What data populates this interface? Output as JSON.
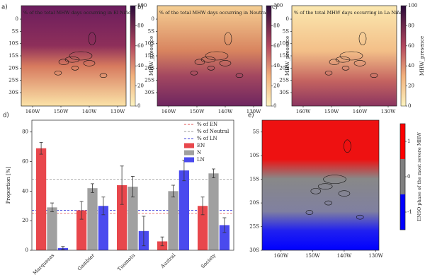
{
  "maps": [
    {
      "panel": "a)",
      "title": "% of the total MHW days occurring in El Niño"
    },
    {
      "panel": "b)",
      "title": "% of the total MHW days occurring in Neutral"
    },
    {
      "panel": "c)",
      "title": "% of the total MHW days occurring in La Niña"
    }
  ],
  "map_axes": {
    "xlim": [
      -164,
      -127
    ],
    "ylim": [
      -35.5,
      5.5
    ],
    "xticks": [
      {
        "value": -160,
        "label": "160W"
      },
      {
        "value": -150,
        "label": "150W"
      },
      {
        "value": -140,
        "label": "140W"
      },
      {
        "value": -130,
        "label": "130W"
      }
    ],
    "yticks": [
      {
        "value": 0,
        "label": "0"
      },
      {
        "value": -5,
        "label": "5S"
      },
      {
        "value": -10,
        "label": "10S"
      },
      {
        "value": -15,
        "label": "15S"
      },
      {
        "value": -20,
        "label": "20S"
      },
      {
        "value": -25,
        "label": "25S"
      },
      {
        "value": -30,
        "label": "30S"
      }
    ]
  },
  "map_colorbar": {
    "label": "MHW_presence",
    "lim": [
      0,
      100
    ],
    "ticks": [
      0,
      20,
      40,
      60,
      80,
      100
    ]
  },
  "map_e": {
    "panel": "e)",
    "xlim": [
      -166,
      -129
    ],
    "ylim": [
      -30,
      -2.5
    ],
    "xticks": [
      {
        "value": -160,
        "label": "160W"
      },
      {
        "value": -150,
        "label": "150W"
      },
      {
        "value": -140,
        "label": "140W"
      },
      {
        "value": -130,
        "label": "130W"
      }
    ],
    "yticks": [
      {
        "value": -5,
        "label": "5S"
      },
      {
        "value": -10,
        "label": "10S"
      },
      {
        "value": -15,
        "label": "15S"
      },
      {
        "value": -20,
        "label": "20S"
      },
      {
        "value": -25,
        "label": "25S"
      },
      {
        "value": -30,
        "label": "30S"
      }
    ],
    "colorbar": {
      "label": "ENSO phase of the most severe MHW",
      "lim": [
        -1.5,
        1.5
      ],
      "ticks": [
        -1,
        0,
        1
      ],
      "colors": [
        "#0000ff",
        "#808080",
        "#ff0000"
      ]
    }
  },
  "chart_data": {
    "type": "bar",
    "panel": "d)",
    "ylabel": "Proportion [%]",
    "categories": [
      "Marquesas",
      "Gambier",
      "Tuamotu",
      "Austral",
      "Society"
    ],
    "series": [
      {
        "name": "EN",
        "color": "#e8474c",
        "values": [
          69,
          27,
          44,
          6,
          30
        ],
        "errors": [
          4,
          6,
          13,
          3,
          6
        ]
      },
      {
        "name": "N",
        "color": "#a0a0a0",
        "values": [
          29,
          42,
          43,
          40,
          52
        ],
        "errors": [
          3,
          3,
          7,
          4,
          3
        ]
      },
      {
        "name": "LN",
        "color": "#4a4aee",
        "values": [
          1.5,
          30,
          13,
          54,
          17
        ],
        "errors": [
          1,
          6,
          10,
          7,
          5
        ]
      }
    ],
    "reference_lines": [
      {
        "name": "% of EN",
        "value": 25,
        "color": "#e05050"
      },
      {
        "name": "% of Neutral",
        "value": 48,
        "color": "#999999"
      },
      {
        "name": "% of LN",
        "value": 27,
        "color": "#4040dd"
      }
    ],
    "ylim": [
      0,
      88
    ],
    "yticks": [
      0,
      20,
      40,
      60,
      80
    ],
    "legend": "upper right"
  }
}
